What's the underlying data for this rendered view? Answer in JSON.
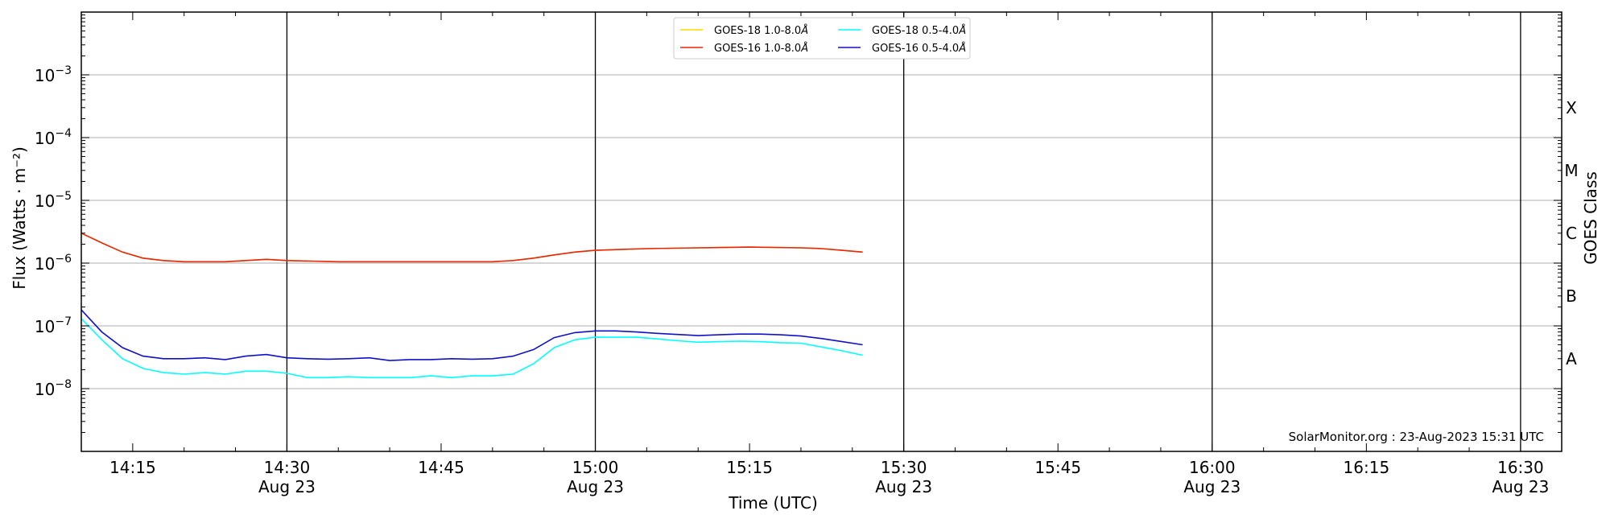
{
  "chart_data": {
    "type": "line",
    "xlabel": "Time (UTC)",
    "ylabel": "Flux (Watts · m⁻²)",
    "right_label": "GOES Class",
    "yscale": "log",
    "x_range": [
      "14:10",
      "16:34"
    ],
    "ylim": [
      1e-09,
      0.01
    ],
    "grid": "horizontal at decades",
    "legend_position": "top-center",
    "credit": "SolarMonitor.org : 23-Aug-2023 15:31 UTC",
    "y_ticks": [
      {
        "value": 1e-08,
        "base": "10",
        "exp": "−8"
      },
      {
        "value": 1e-07,
        "base": "10",
        "exp": "−7"
      },
      {
        "value": 1e-06,
        "base": "10",
        "exp": "−6"
      },
      {
        "value": 1e-05,
        "base": "10",
        "exp": "−5"
      },
      {
        "value": 0.0001,
        "base": "10",
        "exp": "−4"
      },
      {
        "value": 0.001,
        "base": "10",
        "exp": "−3"
      }
    ],
    "x_ticks": [
      {
        "time": "14:15",
        "label": "14:15",
        "sub": ""
      },
      {
        "time": "14:30",
        "label": "14:30",
        "sub": "Aug 23"
      },
      {
        "time": "14:45",
        "label": "14:45",
        "sub": ""
      },
      {
        "time": "15:00",
        "label": "15:00",
        "sub": "Aug 23"
      },
      {
        "time": "15:15",
        "label": "15:15",
        "sub": ""
      },
      {
        "time": "15:30",
        "label": "15:30",
        "sub": "Aug 23"
      },
      {
        "time": "15:45",
        "label": "15:45",
        "sub": ""
      },
      {
        "time": "16:00",
        "label": "16:00",
        "sub": "Aug 23"
      },
      {
        "time": "16:15",
        "label": "16:15",
        "sub": ""
      },
      {
        "time": "16:30",
        "label": "16:30",
        "sub": "Aug 23"
      }
    ],
    "vertical_lines": [
      "14:30",
      "15:00",
      "15:30",
      "16:00",
      "16:30"
    ],
    "goes_classes": [
      {
        "label": "A",
        "value": 3e-08
      },
      {
        "label": "B",
        "value": 3e-07
      },
      {
        "label": "C",
        "value": 3e-06
      },
      {
        "label": "M",
        "value": 3e-05
      },
      {
        "label": "X",
        "value": 0.0003
      }
    ],
    "legend": [
      {
        "series": 0,
        "text": "GOES-18 1.0-8.0",
        "unit": "Å"
      },
      {
        "series": 2,
        "text": "GOES-18 0.5-4.0",
        "unit": "Å"
      },
      {
        "series": 1,
        "text": "GOES-16 1.0-8.0",
        "unit": "Å"
      },
      {
        "series": 3,
        "text": "GOES-16 0.5-4.0",
        "unit": "Å"
      }
    ],
    "series": [
      {
        "name": "GOES-18 1.0-8.0Å",
        "color": "#ffd700",
        "x": [
          "14:10",
          "14:12",
          "14:14",
          "14:16",
          "14:18",
          "14:20",
          "14:22",
          "14:24",
          "14:26",
          "14:28",
          "14:30",
          "14:35",
          "14:40",
          "14:45",
          "14:50",
          "14:52",
          "14:54",
          "14:56",
          "14:58",
          "15:00",
          "15:05",
          "15:10",
          "15:15",
          "15:20",
          "15:22",
          "15:24",
          "15:26"
        ],
        "y": [
          3e-06,
          2.1e-06,
          1.5e-06,
          1.2e-06,
          1.1e-06,
          1.05e-06,
          1.05e-06,
          1.05e-06,
          1.1e-06,
          1.15e-06,
          1.1e-06,
          1.05e-06,
          1.05e-06,
          1.05e-06,
          1.05e-06,
          1.1e-06,
          1.2e-06,
          1.35e-06,
          1.5e-06,
          1.6e-06,
          1.7e-06,
          1.75e-06,
          1.8e-06,
          1.75e-06,
          1.7e-06,
          1.6e-06,
          1.5e-06
        ]
      },
      {
        "name": "GOES-16 1.0-8.0Å",
        "color": "#e8250f",
        "x": [
          "14:10",
          "14:12",
          "14:14",
          "14:16",
          "14:18",
          "14:20",
          "14:22",
          "14:24",
          "14:26",
          "14:28",
          "14:30",
          "14:35",
          "14:40",
          "14:45",
          "14:50",
          "14:52",
          "14:54",
          "14:56",
          "14:58",
          "15:00",
          "15:05",
          "15:10",
          "15:15",
          "15:20",
          "15:22",
          "15:24",
          "15:26"
        ],
        "y": [
          3e-06,
          2.1e-06,
          1.5e-06,
          1.2e-06,
          1.1e-06,
          1.05e-06,
          1.05e-06,
          1.05e-06,
          1.1e-06,
          1.15e-06,
          1.1e-06,
          1.05e-06,
          1.05e-06,
          1.05e-06,
          1.05e-06,
          1.1e-06,
          1.2e-06,
          1.35e-06,
          1.5e-06,
          1.6e-06,
          1.7e-06,
          1.75e-06,
          1.8e-06,
          1.75e-06,
          1.7e-06,
          1.6e-06,
          1.5e-06
        ]
      },
      {
        "name": "GOES-18 0.5-4.0Å",
        "color": "#00ffff",
        "x": [
          "14:10",
          "14:12",
          "14:14",
          "14:16",
          "14:18",
          "14:20",
          "14:22",
          "14:24",
          "14:26",
          "14:28",
          "14:30",
          "14:32",
          "14:34",
          "14:36",
          "14:38",
          "14:40",
          "14:42",
          "14:44",
          "14:46",
          "14:48",
          "14:50",
          "14:52",
          "14:54",
          "14:56",
          "14:58",
          "15:00",
          "15:02",
          "15:04",
          "15:06",
          "15:08",
          "15:10",
          "15:12",
          "15:14",
          "15:16",
          "15:18",
          "15:20",
          "15:22",
          "15:24",
          "15:26"
        ],
        "y": [
          1.3e-07,
          6e-08,
          3e-08,
          2.1e-08,
          1.8e-08,
          1.7e-08,
          1.8e-08,
          1.7e-08,
          1.9e-08,
          1.9e-08,
          1.75e-08,
          1.5e-08,
          1.5e-08,
          1.55e-08,
          1.5e-08,
          1.5e-08,
          1.5e-08,
          1.6e-08,
          1.5e-08,
          1.6e-08,
          1.6e-08,
          1.7e-08,
          2.5e-08,
          4.5e-08,
          6e-08,
          6.6e-08,
          6.6e-08,
          6.6e-08,
          6.2e-08,
          5.8e-08,
          5.5e-08,
          5.6e-08,
          5.7e-08,
          5.6e-08,
          5.4e-08,
          5.3e-08,
          4.6e-08,
          4e-08,
          3.4e-08
        ]
      },
      {
        "name": "GOES-16 0.5-4.0Å",
        "color": "#1010c8",
        "x": [
          "14:10",
          "14:12",
          "14:14",
          "14:16",
          "14:18",
          "14:20",
          "14:22",
          "14:24",
          "14:26",
          "14:28",
          "14:30",
          "14:32",
          "14:34",
          "14:36",
          "14:38",
          "14:40",
          "14:42",
          "14:44",
          "14:46",
          "14:48",
          "14:50",
          "14:52",
          "14:54",
          "14:56",
          "14:58",
          "15:00",
          "15:02",
          "15:04",
          "15:06",
          "15:08",
          "15:10",
          "15:12",
          "15:14",
          "15:16",
          "15:18",
          "15:20",
          "15:22",
          "15:24",
          "15:26"
        ],
        "y": [
          1.8e-07,
          8e-08,
          4.5e-08,
          3.3e-08,
          3e-08,
          3e-08,
          3.1e-08,
          2.9e-08,
          3.3e-08,
          3.5e-08,
          3.1e-08,
          3e-08,
          2.95e-08,
          3e-08,
          3.1e-08,
          2.8e-08,
          2.9e-08,
          2.9e-08,
          3e-08,
          2.95e-08,
          3e-08,
          3.3e-08,
          4.2e-08,
          6.5e-08,
          7.8e-08,
          8.3e-08,
          8.3e-08,
          8e-08,
          7.6e-08,
          7.3e-08,
          7e-08,
          7.2e-08,
          7.4e-08,
          7.4e-08,
          7.2e-08,
          6.9e-08,
          6.3e-08,
          5.6e-08,
          5e-08
        ]
      }
    ]
  }
}
